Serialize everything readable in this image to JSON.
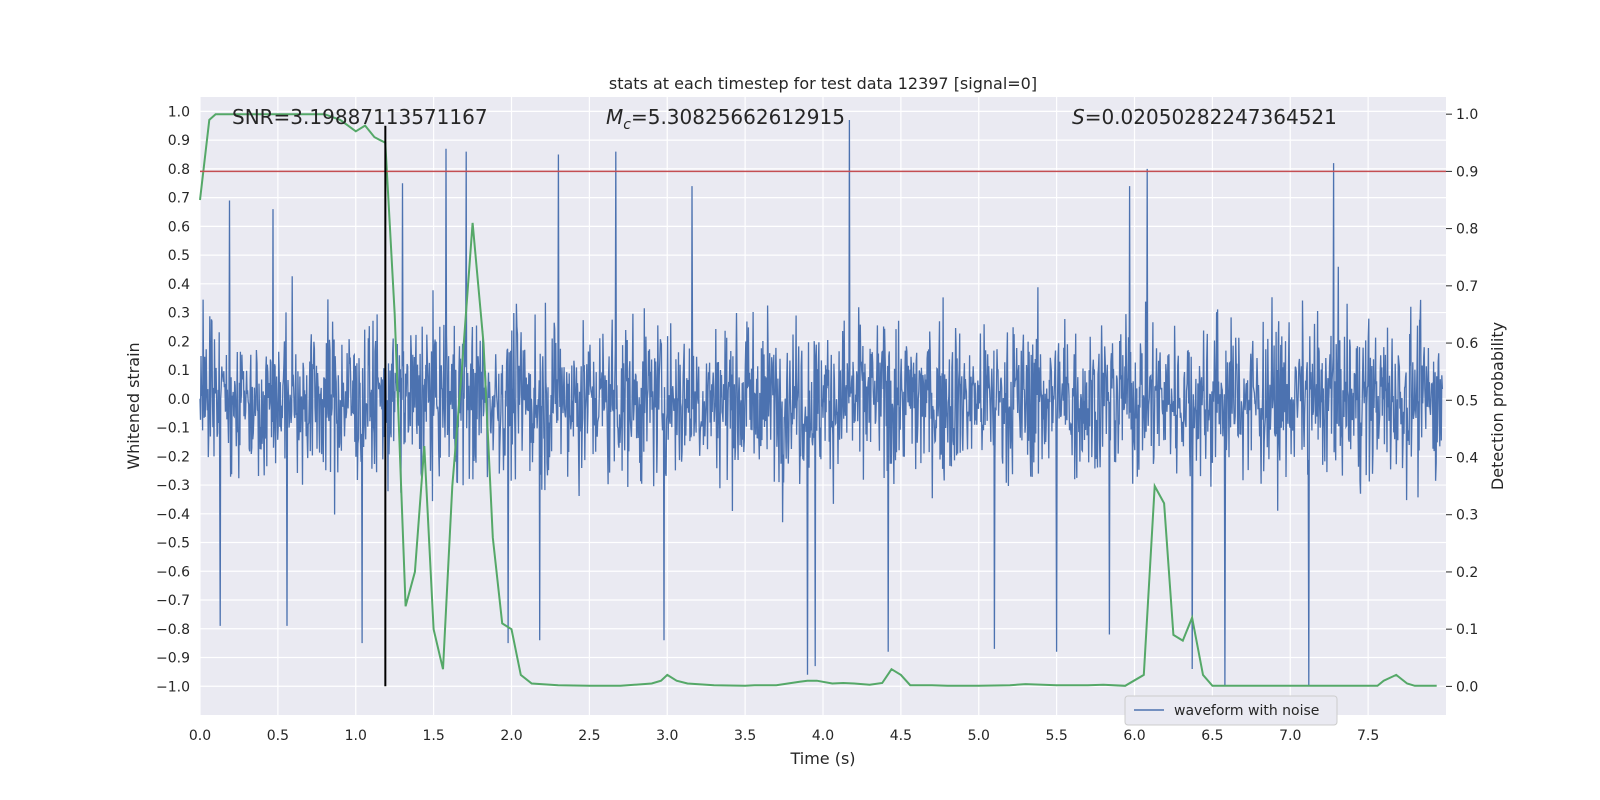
{
  "chart_data": {
    "type": "line",
    "title": "stats at each timestep for test data 12397 [signal=0]",
    "xlabel": "Time (s)",
    "ylabel_left": "Whitened strain",
    "ylabel_right": "Detection probability",
    "xlim": [
      0.0,
      8.0
    ],
    "ylim_left": [
      -1.1,
      1.05
    ],
    "ylim_right": [
      -0.05,
      1.03
    ],
    "x_ticks": [
      "0.0",
      "0.5",
      "1.0",
      "1.5",
      "2.0",
      "2.5",
      "3.0",
      "3.5",
      "4.0",
      "4.5",
      "5.0",
      "5.5",
      "6.0",
      "6.5",
      "7.0",
      "7.5"
    ],
    "x_tick_values": [
      0,
      0.5,
      1,
      1.5,
      2,
      2.5,
      3,
      3.5,
      4,
      4.5,
      5,
      5.5,
      6,
      6.5,
      7,
      7.5
    ],
    "y_left_ticks": [
      "1.0",
      "0.9",
      "0.8",
      "0.7",
      "0.6",
      "0.5",
      "0.4",
      "0.3",
      "0.2",
      "0.1",
      "0.0",
      "−0.1",
      "−0.2",
      "−0.3",
      "−0.4",
      "−0.5",
      "−0.6",
      "−0.7",
      "−0.8",
      "−0.9",
      "−1.0"
    ],
    "y_left_tick_values": [
      1.0,
      0.9,
      0.8,
      0.7,
      0.6,
      0.5,
      0.4,
      0.3,
      0.2,
      0.1,
      0.0,
      -0.1,
      -0.2,
      -0.3,
      -0.4,
      -0.5,
      -0.6,
      -0.7,
      -0.8,
      -0.9,
      -1.0
    ],
    "y_right_ticks": [
      "1.0",
      "0.9",
      "0.8",
      "0.7",
      "0.6",
      "0.5",
      "0.4",
      "0.3",
      "0.2",
      "0.1",
      "0.0"
    ],
    "y_right_tick_values": [
      1.0,
      0.9,
      0.8,
      0.7,
      0.6,
      0.5,
      0.4,
      0.3,
      0.2,
      0.1,
      0.0
    ],
    "annotations": {
      "snr": "SNR=3.19887113571167",
      "mc_symbol": "M",
      "mc_subscript": "c",
      "mc_value": "=5.30825662612915",
      "s_symbol": "S",
      "s_value": "=0.020502822473645​21"
    },
    "threshold_line": {
      "axis": "right",
      "value": 0.9,
      "color": "#c44e52"
    },
    "vertical_marker": {
      "x": 1.19,
      "y_from": -1.0,
      "y_to": 0.95,
      "color": "#000000"
    },
    "series": [
      {
        "name": "waveform with noise",
        "axis": "left",
        "color": "#4c72b0",
        "envelope_note": "dense noise band mostly within ±0.45, spikes up to about 0.95 and down to about −1.0",
        "spikes": [
          {
            "x": 1.58,
            "y": 0.87
          },
          {
            "x": 1.71,
            "y": 0.86
          },
          {
            "x": 2.3,
            "y": 0.85
          },
          {
            "x": 2.67,
            "y": 0.86
          },
          {
            "x": 4.17,
            "y": 0.97
          },
          {
            "x": 7.28,
            "y": 0.82
          },
          {
            "x": 6.08,
            "y": 0.8
          },
          {
            "x": 0.47,
            "y": 0.66
          },
          {
            "x": 0.19,
            "y": 0.69
          },
          {
            "x": 1.3,
            "y": 0.75
          },
          {
            "x": 3.16,
            "y": 0.74
          },
          {
            "x": 5.97,
            "y": 0.74
          },
          {
            "x": 0.13,
            "y": -0.79
          },
          {
            "x": 1.04,
            "y": -0.85
          },
          {
            "x": 1.98,
            "y": -0.85
          },
          {
            "x": 2.18,
            "y": -0.84
          },
          {
            "x": 2.98,
            "y": -0.84
          },
          {
            "x": 3.9,
            "y": -0.96
          },
          {
            "x": 3.95,
            "y": -0.93
          },
          {
            "x": 4.42,
            "y": -0.88
          },
          {
            "x": 5.1,
            "y": -0.87
          },
          {
            "x": 5.5,
            "y": -0.88
          },
          {
            "x": 6.37,
            "y": -0.94
          },
          {
            "x": 6.58,
            "y": -1.0
          },
          {
            "x": 7.12,
            "y": -1.0
          },
          {
            "x": 0.56,
            "y": -0.79
          },
          {
            "x": 5.84,
            "y": -0.82
          }
        ]
      },
      {
        "name": "detection probability",
        "axis": "right",
        "color": "#55a868",
        "x": [
          0.0,
          0.06,
          0.1,
          0.2,
          0.3,
          0.4,
          0.5,
          0.6,
          0.7,
          0.8,
          0.9,
          0.95,
          1.0,
          1.06,
          1.12,
          1.19,
          1.25,
          1.32,
          1.38,
          1.44,
          1.5,
          1.56,
          1.62,
          1.68,
          1.75,
          1.82,
          1.88,
          1.94,
          2.0,
          2.06,
          2.13,
          2.3,
          2.5,
          2.7,
          2.9,
          2.96,
          3.0,
          3.06,
          3.13,
          3.3,
          3.5,
          3.56,
          3.7,
          3.85,
          3.9,
          3.96,
          4.06,
          4.13,
          4.2,
          4.3,
          4.38,
          4.44,
          4.5,
          4.56,
          4.62,
          4.7,
          4.8,
          4.9,
          5.0,
          5.2,
          5.3,
          5.5,
          5.7,
          5.8,
          5.94,
          6.06,
          6.13,
          6.19,
          6.25,
          6.31,
          6.37,
          6.44,
          6.5,
          6.7,
          6.9,
          7.1,
          7.3,
          7.56,
          7.6,
          7.68,
          7.75,
          7.8,
          7.94
        ],
        "y": [
          0.85,
          0.99,
          1.0,
          1.0,
          1.0,
          1.0,
          1.0,
          1.0,
          1.0,
          1.0,
          0.99,
          0.98,
          0.97,
          0.98,
          0.96,
          0.95,
          0.65,
          0.14,
          0.2,
          0.42,
          0.1,
          0.03,
          0.35,
          0.55,
          0.81,
          0.6,
          0.26,
          0.11,
          0.1,
          0.02,
          0.005,
          0.002,
          0.001,
          0.001,
          0.005,
          0.01,
          0.02,
          0.01,
          0.005,
          0.002,
          0.001,
          0.002,
          0.002,
          0.008,
          0.01,
          0.01,
          0.005,
          0.006,
          0.005,
          0.003,
          0.006,
          0.03,
          0.02,
          0.002,
          0.002,
          0.002,
          0.001,
          0.001,
          0.001,
          0.002,
          0.004,
          0.002,
          0.002,
          0.003,
          0.001,
          0.02,
          0.35,
          0.32,
          0.09,
          0.08,
          0.12,
          0.02,
          0.001,
          0.001,
          0.001,
          0.001,
          0.001,
          0.001,
          0.01,
          0.02,
          0.005,
          0.001,
          0.001
        ]
      }
    ],
    "legend": {
      "placement": "bottom-right",
      "entries": [
        "waveform with noise"
      ]
    }
  }
}
